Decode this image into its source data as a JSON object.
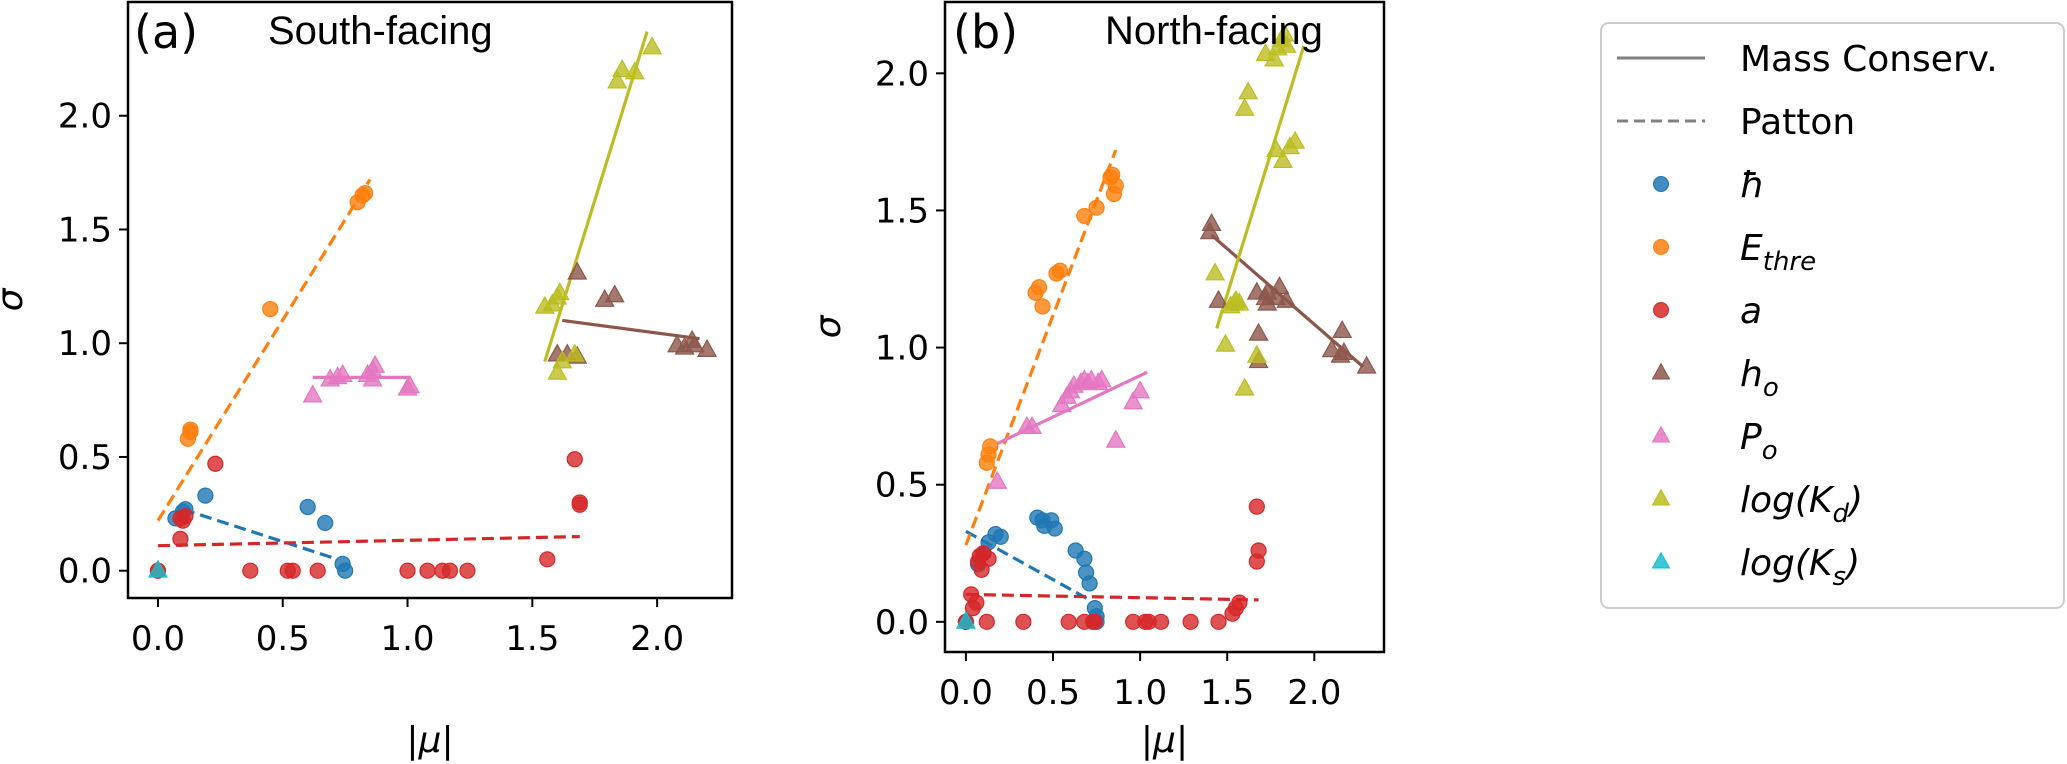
{
  "chart_data": [
    {
      "type": "scatter",
      "panel_tag": "(a)",
      "title": "South-facing",
      "xlabel": "|μ|",
      "ylabel": "σ",
      "xlim": [
        -0.12,
        2.3
      ],
      "ylim": [
        -0.12,
        2.5
      ],
      "xticks": [
        0.0,
        0.5,
        1.0,
        1.5,
        2.0
      ],
      "xtick_labels": [
        "0.0",
        "0.5",
        "1.0",
        "1.5",
        "2.0"
      ],
      "yticks": [
        0.0,
        0.5,
        1.0,
        1.5,
        2.0
      ],
      "ytick_labels": [
        "0.0",
        "0.5",
        "1.0",
        "1.5",
        "2.0"
      ],
      "grid": false,
      "series": [
        {
          "key": "hbar",
          "name": "ħ",
          "marker": "circle",
          "color": "#1f77b4",
          "points": [
            [
              0.0,
              0.0
            ],
            [
              0.07,
              0.23
            ],
            [
              0.1,
              0.26
            ],
            [
              0.11,
              0.27
            ],
            [
              0.19,
              0.33
            ],
            [
              0.6,
              0.28
            ],
            [
              0.67,
              0.21
            ],
            [
              0.74,
              0.03
            ],
            [
              0.75,
              0.0
            ]
          ],
          "fit": {
            "style": "dashed",
            "x": [
              0.1,
              0.72
            ],
            "y": [
              0.27,
              0.05
            ]
          }
        },
        {
          "key": "ethre",
          "name": "E_thre",
          "marker": "circle",
          "color": "#ff7f0e",
          "points": [
            [
              0.0,
              0.0
            ],
            [
              0.12,
              0.58
            ],
            [
              0.13,
              0.61
            ],
            [
              0.13,
              0.62
            ],
            [
              0.45,
              1.15
            ],
            [
              0.8,
              1.62
            ],
            [
              0.82,
              1.65
            ],
            [
              0.83,
              1.66
            ]
          ],
          "fit": {
            "style": "dashed",
            "x": [
              0.0,
              0.85
            ],
            "y": [
              0.22,
              1.72
            ]
          }
        },
        {
          "key": "a",
          "name": "a",
          "marker": "circle",
          "color": "#d62728",
          "points": [
            [
              0.0,
              0.0
            ],
            [
              0.09,
              0.14
            ],
            [
              0.09,
              0.23
            ],
            [
              0.1,
              0.22
            ],
            [
              0.11,
              0.24
            ],
            [
              0.23,
              0.47
            ],
            [
              0.37,
              0.0
            ],
            [
              0.52,
              0.0
            ],
            [
              0.54,
              0.0
            ],
            [
              0.64,
              0.0
            ],
            [
              1.0,
              0.0
            ],
            [
              1.08,
              0.0
            ],
            [
              1.14,
              0.0
            ],
            [
              1.17,
              0.0
            ],
            [
              1.24,
              0.0
            ],
            [
              1.56,
              0.05
            ],
            [
              1.67,
              0.49
            ],
            [
              1.69,
              0.3
            ],
            [
              1.69,
              0.29
            ]
          ],
          "fit": {
            "style": "dashed",
            "x": [
              0.0,
              1.69
            ],
            "y": [
              0.11,
              0.15
            ]
          }
        },
        {
          "key": "ho",
          "name": "h_o",
          "marker": "triangle",
          "color": "#8c564b",
          "points": [
            [
              1.6,
              0.95
            ],
            [
              1.64,
              0.95
            ],
            [
              1.68,
              0.94
            ],
            [
              1.68,
              1.31
            ],
            [
              1.79,
              1.19
            ],
            [
              1.83,
              1.21
            ],
            [
              2.08,
              0.99
            ],
            [
              2.11,
              0.98
            ],
            [
              2.14,
              1.01
            ],
            [
              2.15,
              0.99
            ],
            [
              2.2,
              0.97
            ]
          ],
          "fit": {
            "style": "solid",
            "x": [
              1.62,
              2.17
            ],
            "y": [
              1.1,
              1.02
            ]
          }
        },
        {
          "key": "po",
          "name": "P_o",
          "marker": "triangle",
          "color": "#e377c2",
          "points": [
            [
              0.62,
              0.77
            ],
            [
              0.69,
              0.84
            ],
            [
              0.72,
              0.85
            ],
            [
              0.74,
              0.86
            ],
            [
              0.84,
              0.86
            ],
            [
              0.86,
              0.88
            ],
            [
              0.87,
              0.9
            ],
            [
              0.86,
              0.84
            ],
            [
              1.0,
              0.8
            ],
            [
              1.01,
              0.81
            ]
          ],
          "fit": {
            "style": "solid",
            "x": [
              0.62,
              1.01
            ],
            "y": [
              0.85,
              0.85
            ]
          }
        },
        {
          "key": "kd",
          "name": "log(K_d)",
          "marker": "triangle",
          "color": "#bcbd22",
          "points": [
            [
              1.6,
              0.87
            ],
            [
              1.62,
              0.92
            ],
            [
              1.67,
              0.95
            ],
            [
              1.55,
              1.16
            ],
            [
              1.58,
              1.17
            ],
            [
              1.6,
              1.2
            ],
            [
              1.61,
              1.22
            ],
            [
              1.84,
              2.15
            ],
            [
              1.86,
              2.2
            ],
            [
              1.91,
              2.19
            ],
            [
              1.98,
              2.3
            ]
          ],
          "fit": {
            "style": "solid",
            "x": [
              1.55,
              1.96
            ],
            "y": [
              0.92,
              2.37
            ]
          }
        },
        {
          "key": "ks",
          "name": "log(K_s)",
          "marker": "triangle",
          "color": "#17becf",
          "points": [
            [
              0.0,
              0.0
            ]
          ],
          "fit": null
        }
      ]
    },
    {
      "type": "scatter",
      "panel_tag": "(b)",
      "title": "North-facing",
      "xlabel": "|μ|",
      "ylabel": "σ",
      "xlim": [
        -0.12,
        2.4
      ],
      "ylim": [
        -0.11,
        2.26
      ],
      "xticks": [
        0.0,
        0.5,
        1.0,
        1.5,
        2.0
      ],
      "xtick_labels": [
        "0.0",
        "0.5",
        "1.0",
        "1.5",
        "2.0"
      ],
      "yticks": [
        0.0,
        0.5,
        1.0,
        1.5,
        2.0
      ],
      "ytick_labels": [
        "0.0",
        "0.5",
        "1.0",
        "1.5",
        "2.0"
      ],
      "grid": false,
      "series": [
        {
          "key": "hbar",
          "name": "ħ",
          "marker": "circle",
          "color": "#1f77b4",
          "points": [
            [
              0.0,
              0.0
            ],
            [
              0.07,
              0.21
            ],
            [
              0.1,
              0.25
            ],
            [
              0.13,
              0.29
            ],
            [
              0.17,
              0.32
            ],
            [
              0.2,
              0.31
            ],
            [
              0.41,
              0.38
            ],
            [
              0.44,
              0.37
            ],
            [
              0.45,
              0.35
            ],
            [
              0.49,
              0.37
            ],
            [
              0.51,
              0.34
            ],
            [
              0.63,
              0.26
            ],
            [
              0.68,
              0.23
            ],
            [
              0.69,
              0.18
            ],
            [
              0.71,
              0.14
            ],
            [
              0.74,
              0.05
            ],
            [
              0.75,
              0.02
            ],
            [
              0.75,
              0.0
            ]
          ],
          "fit": {
            "style": "dashed",
            "x": [
              0.0,
              0.71
            ],
            "y": [
              0.33,
              0.08
            ]
          }
        },
        {
          "key": "ethre",
          "name": "E_thre",
          "marker": "circle",
          "color": "#ff7f0e",
          "points": [
            [
              0.12,
              0.58
            ],
            [
              0.13,
              0.61
            ],
            [
              0.14,
              0.64
            ],
            [
              0.4,
              1.2
            ],
            [
              0.42,
              1.22
            ],
            [
              0.44,
              1.15
            ],
            [
              0.52,
              1.27
            ],
            [
              0.54,
              1.28
            ],
            [
              0.68,
              1.48
            ],
            [
              0.75,
              1.51
            ],
            [
              0.83,
              1.62
            ],
            [
              0.84,
              1.63
            ],
            [
              0.86,
              1.59
            ],
            [
              0.85,
              1.56
            ]
          ],
          "fit": {
            "style": "dashed",
            "x": [
              0.0,
              0.86
            ],
            "y": [
              0.28,
              1.72
            ]
          }
        },
        {
          "key": "a",
          "name": "a",
          "marker": "circle",
          "color": "#d62728",
          "points": [
            [
              0.0,
              0.0
            ],
            [
              0.03,
              0.1
            ],
            [
              0.04,
              0.05
            ],
            [
              0.06,
              0.07
            ],
            [
              0.07,
              0.22
            ],
            [
              0.08,
              0.24
            ],
            [
              0.09,
              0.19
            ],
            [
              0.1,
              0.25
            ],
            [
              0.13,
              0.23
            ],
            [
              0.12,
              0.0
            ],
            [
              0.33,
              0.0
            ],
            [
              0.59,
              0.0
            ],
            [
              0.68,
              0.0
            ],
            [
              0.73,
              0.0
            ],
            [
              0.74,
              0.0
            ],
            [
              0.96,
              0.0
            ],
            [
              1.03,
              0.0
            ],
            [
              1.05,
              0.0
            ],
            [
              1.12,
              0.0
            ],
            [
              1.29,
              0.0
            ],
            [
              1.45,
              0.0
            ],
            [
              1.53,
              0.03
            ],
            [
              1.55,
              0.05
            ],
            [
              1.57,
              0.07
            ],
            [
              1.67,
              0.22
            ],
            [
              1.68,
              0.26
            ],
            [
              1.67,
              0.42
            ]
          ],
          "fit": {
            "style": "dashed",
            "x": [
              0.0,
              1.68
            ],
            "y": [
              0.1,
              0.08
            ]
          }
        },
        {
          "key": "ho",
          "name": "h_o",
          "marker": "triangle",
          "color": "#8c564b",
          "points": [
            [
              1.4,
              1.42
            ],
            [
              1.41,
              1.45
            ],
            [
              1.45,
              1.17
            ],
            [
              1.67,
              1.2
            ],
            [
              1.73,
              1.16
            ],
            [
              1.73,
              1.2
            ],
            [
              1.72,
              1.18
            ],
            [
              1.78,
              1.18
            ],
            [
              1.8,
              1.22
            ],
            [
              1.84,
              1.17
            ],
            [
              1.68,
              0.95
            ],
            [
              1.68,
              1.05
            ],
            [
              2.1,
              0.99
            ],
            [
              2.15,
              0.97
            ],
            [
              2.16,
              1.06
            ],
            [
              2.17,
              0.98
            ],
            [
              2.3,
              0.93
            ]
          ],
          "fit": {
            "style": "solid",
            "x": [
              1.41,
              2.28
            ],
            "y": [
              1.41,
              0.93
            ]
          }
        },
        {
          "key": "po",
          "name": "P_o",
          "marker": "triangle",
          "color": "#e377c2",
          "points": [
            [
              0.18,
              0.51
            ],
            [
              0.35,
              0.71
            ],
            [
              0.38,
              0.71
            ],
            [
              0.55,
              0.79
            ],
            [
              0.58,
              0.82
            ],
            [
              0.6,
              0.84
            ],
            [
              0.62,
              0.86
            ],
            [
              0.66,
              0.87
            ],
            [
              0.68,
              0.88
            ],
            [
              0.7,
              0.87
            ],
            [
              0.72,
              0.88
            ],
            [
              0.76,
              0.87
            ],
            [
              0.78,
              0.88
            ],
            [
              0.86,
              0.66
            ],
            [
              0.96,
              0.8
            ],
            [
              1.0,
              0.84
            ]
          ],
          "fit": {
            "style": "solid",
            "x": [
              0.18,
              1.04
            ],
            "y": [
              0.65,
              0.91
            ]
          }
        },
        {
          "key": "kd",
          "name": "log(K_d)",
          "marker": "triangle",
          "color": "#bcbd22",
          "points": [
            [
              1.43,
              1.27
            ],
            [
              1.52,
              1.15
            ],
            [
              1.55,
              1.17
            ],
            [
              1.57,
              1.16
            ],
            [
              1.49,
              1.01
            ],
            [
              1.54,
              1.16
            ],
            [
              1.6,
              0.85
            ],
            [
              1.67,
              0.97
            ],
            [
              1.6,
              1.87
            ],
            [
              1.62,
              1.93
            ],
            [
              1.72,
              2.07
            ],
            [
              1.77,
              2.05
            ],
            [
              1.79,
              2.09
            ],
            [
              1.81,
              2.12
            ],
            [
              1.83,
              2.14
            ],
            [
              1.84,
              2.1
            ],
            [
              1.78,
              1.72
            ],
            [
              1.82,
              1.68
            ],
            [
              1.86,
              1.73
            ],
            [
              1.89,
              1.75
            ]
          ],
          "fit": {
            "style": "solid",
            "x": [
              1.44,
              1.94
            ],
            "y": [
              1.07,
              2.1
            ]
          }
        },
        {
          "key": "ks",
          "name": "log(K_s)",
          "marker": "triangle",
          "color": "#17becf",
          "points": [
            [
              0.0,
              0.0
            ]
          ],
          "fit": null
        }
      ]
    }
  ],
  "legend": {
    "placement": "right",
    "entries": [
      {
        "label": "Mass Conserv.",
        "kind": "line-solid",
        "color": "#808080"
      },
      {
        "label": "Patton",
        "kind": "line-dashed",
        "color": "#808080"
      },
      {
        "label": "ħ",
        "kind": "circle",
        "color": "#1f77b4"
      },
      {
        "label": "E",
        "sub": "thre",
        "kind": "circle",
        "color": "#ff7f0e"
      },
      {
        "label": "a",
        "kind": "circle",
        "color": "#d62728"
      },
      {
        "label": "h",
        "sub": "o",
        "kind": "triangle",
        "color": "#8c564b"
      },
      {
        "label": "P",
        "sub": "o",
        "kind": "triangle",
        "color": "#e377c2"
      },
      {
        "label": "log(K",
        "sub": "d",
        "suffix": ")",
        "kind": "triangle",
        "color": "#bcbd22"
      },
      {
        "label": "log(K",
        "sub": "s",
        "suffix": ")",
        "kind": "triangle",
        "color": "#17becf"
      }
    ]
  }
}
